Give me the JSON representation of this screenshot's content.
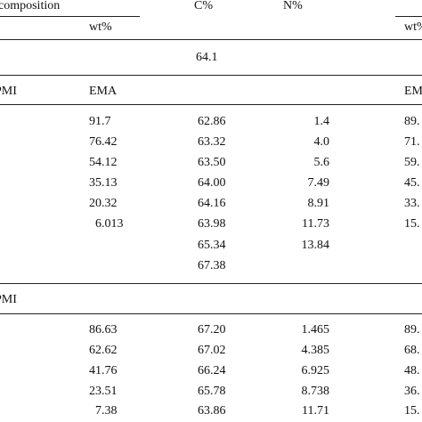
{
  "header": {
    "composition": "composition",
    "c_pct": "C%",
    "n_pct": "N%",
    "wt_pct_left": "wt%",
    "wt_pct_right": "wt%"
  },
  "first_row": {
    "c": "64.1"
  },
  "section1": {
    "label": "PMI",
    "ema_left": "EMA",
    "ema_right": "EMA",
    "rows": [
      {
        "wt": "91.7",
        "c": "62.86",
        "n": "1.4",
        "wt2": "89."
      },
      {
        "wt": "76.42",
        "c": "63.32",
        "n": "4.0",
        "wt2": "71."
      },
      {
        "wt": "54.12",
        "c": "63.50",
        "n": "5.6",
        "wt2": "59."
      },
      {
        "wt": "35.13",
        "c": "64.00",
        "n": "7.49",
        "wt2": "45."
      },
      {
        "wt": "20.32",
        "c": "64.16",
        "n": "8.91",
        "wt2": "33."
      },
      {
        "wt": "6.013",
        "c": "63.98",
        "n": "11.73",
        "wt2": "15."
      },
      {
        "wt": "",
        "c": "65.34",
        "n": "13.84",
        "wt2": ""
      },
      {
        "wt": "",
        "c": "67.38",
        "n": "",
        "wt2": ""
      }
    ]
  },
  "section2": {
    "label": "PMI",
    "rows": [
      {
        "wt": "86.63",
        "c": "67.20",
        "n": "1.465",
        "wt2": "89."
      },
      {
        "wt": "62.62",
        "c": "67.02",
        "n": "4.385",
        "wt2": "68."
      },
      {
        "wt": "41.76",
        "c": "66.24",
        "n": "6.925",
        "wt2": "48."
      },
      {
        "wt": "23.51",
        "c": "65.78",
        "n": "8.738",
        "wt2": "36."
      },
      {
        "wt": "7.38",
        "c": "63.86",
        "n": "11.71",
        "wt2": "15."
      }
    ]
  }
}
